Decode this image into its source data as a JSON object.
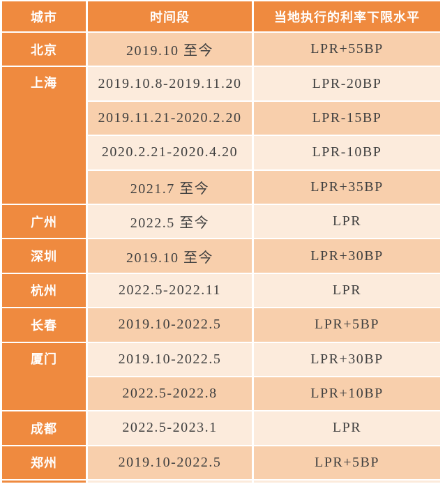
{
  "style": {
    "accent_color": "#EF8A3F",
    "band_light_color": "#FCEBDC",
    "band_dark_color": "#F8CFAC",
    "header_text_color": "#FFFFFF",
    "body_text_color": "#404040"
  },
  "chart_data": {
    "type": "table",
    "columns": [
      "城市",
      "时间段",
      "当地执行的利率下限水平"
    ],
    "rows": [
      {
        "city": "北京",
        "rowspan": 1,
        "period": "2019.10 至今",
        "rate": "LPR+55BP"
      },
      {
        "city": "上海",
        "rowspan": 4,
        "period": "2019.10.8-2019.11.20",
        "rate": "LPR-20BP"
      },
      {
        "period": "2019.11.21-2020.2.20",
        "rate": "LPR-15BP"
      },
      {
        "period": "2020.2.21-2020.4.20",
        "rate": "LPR-10BP"
      },
      {
        "period": "2021.7 至今",
        "rate": "LPR+35BP"
      },
      {
        "city": "广州",
        "rowspan": 1,
        "period": "2022.5 至今",
        "rate": "LPR"
      },
      {
        "city": "深圳",
        "rowspan": 1,
        "period": "2019.10 至今",
        "rate": "LPR+30BP"
      },
      {
        "city": "杭州",
        "rowspan": 1,
        "period": "2022.5-2022.11",
        "rate": "LPR"
      },
      {
        "city": "长春",
        "rowspan": 1,
        "period": "2019.10-2022.5",
        "rate": "LPR+5BP"
      },
      {
        "city": "厦门",
        "rowspan": 2,
        "period": "2019.10-2022.5",
        "rate": "LPR+30BP"
      },
      {
        "period": "2022.5-2022.8",
        "rate": "LPR+10BP"
      },
      {
        "city": "成都",
        "rowspan": 1,
        "period": "2022.5-2023.1",
        "rate": "LPR"
      },
      {
        "city": "郑州",
        "rowspan": 1,
        "period": "2019.10-2022.5",
        "rate": "LPR+5BP"
      }
    ]
  }
}
